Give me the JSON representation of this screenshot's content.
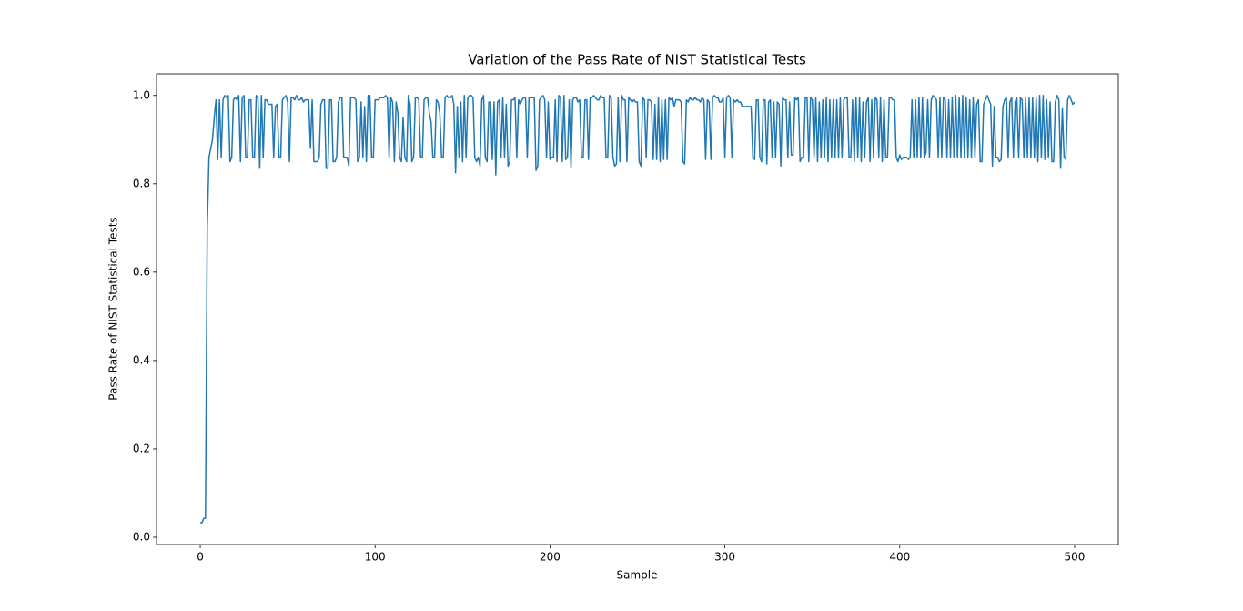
{
  "chart_data": {
    "type": "line",
    "title": "Variation of the Pass Rate of NIST Statistical Tests",
    "xlabel": "Sample",
    "ylabel": "Pass Rate of NIST Statistical Tests",
    "xlim": [
      -25,
      525
    ],
    "ylim": [
      -0.0165,
      1.049
    ],
    "xticks": [
      0,
      100,
      200,
      300,
      400,
      500
    ],
    "yticks": [
      {
        "value": 0,
        "label": "0.0"
      },
      0.2,
      0.4,
      0.6,
      0.8,
      {
        "value": 1,
        "label": "1.0"
      }
    ],
    "x": [
      0,
      1,
      2,
      3,
      4,
      5,
      6,
      7,
      8,
      9,
      10,
      11,
      12,
      13,
      14,
      15,
      16,
      17,
      18,
      19,
      20,
      21,
      22,
      23,
      24,
      25,
      26,
      27,
      28,
      29,
      30,
      31,
      32,
      33,
      34,
      35,
      36,
      37,
      38,
      39,
      40,
      41,
      42,
      43,
      44,
      45,
      46,
      47,
      48,
      49,
      50,
      51,
      52,
      53,
      54,
      55,
      56,
      57,
      58,
      59,
      60,
      61,
      62,
      63,
      64,
      65,
      66,
      67,
      68,
      69,
      70,
      71,
      72,
      73,
      74,
      75,
      76,
      77,
      78,
      79,
      80,
      81,
      82,
      83,
      84,
      85,
      86,
      87,
      88,
      89,
      90,
      91,
      92,
      93,
      94,
      95,
      96,
      97,
      98,
      99,
      100,
      101,
      102,
      103,
      104,
      105,
      106,
      107,
      108,
      109,
      110,
      111,
      112,
      113,
      114,
      115,
      116,
      117,
      118,
      119,
      120,
      121,
      122,
      123,
      124,
      125,
      126,
      127,
      128,
      129,
      130,
      131,
      132,
      133,
      134,
      135,
      136,
      137,
      138,
      139,
      140,
      141,
      142,
      143,
      144,
      145,
      146,
      147,
      148,
      149,
      150,
      151,
      152,
      153,
      154,
      155,
      156,
      157,
      158,
      159,
      160,
      161,
      162,
      163,
      164,
      165,
      166,
      167,
      168,
      169,
      170,
      171,
      172,
      173,
      174,
      175,
      176,
      177,
      178,
      179,
      180,
      181,
      182,
      183,
      184,
      185,
      186,
      187,
      188,
      189,
      190,
      191,
      192,
      193,
      194,
      195,
      196,
      197,
      198,
      199,
      200,
      201,
      202,
      203,
      204,
      205,
      206,
      207,
      208,
      209,
      210,
      211,
      212,
      213,
      214,
      215,
      216,
      217,
      218,
      219,
      220,
      221,
      222,
      223,
      224,
      225,
      226,
      227,
      228,
      229,
      230,
      231,
      232,
      233,
      234,
      235,
      236,
      237,
      238,
      239,
      240,
      241,
      242,
      243,
      244,
      245,
      246,
      247,
      248,
      249,
      250,
      251,
      252,
      253,
      254,
      255,
      256,
      257,
      258,
      259,
      260,
      261,
      262,
      263,
      264,
      265,
      266,
      267,
      268,
      269,
      270,
      271,
      272,
      273,
      274,
      275,
      276,
      277,
      278,
      279,
      280,
      281,
      282,
      283,
      284,
      285,
      286,
      287,
      288,
      289,
      290,
      291,
      292,
      293,
      294,
      295,
      296,
      297,
      298,
      299,
      300,
      301,
      302,
      303,
      304,
      305,
      306,
      307,
      308,
      309,
      310,
      311,
      312,
      313,
      314,
      315,
      316,
      317,
      318,
      319,
      320,
      321,
      322,
      323,
      324,
      325,
      326,
      327,
      328,
      329,
      330,
      331,
      332,
      333,
      334,
      335,
      336,
      337,
      338,
      339,
      340,
      341,
      342,
      343,
      344,
      345,
      346,
      347,
      348,
      349,
      350,
      351,
      352,
      353,
      354,
      355,
      356,
      357,
      358,
      359,
      360,
      361,
      362,
      363,
      364,
      365,
      366,
      367,
      368,
      369,
      370,
      371,
      372,
      373,
      374,
      375,
      376,
      377,
      378,
      379,
      380,
      381,
      382,
      383,
      384,
      385,
      386,
      387,
      388,
      389,
      390,
      391,
      392,
      393,
      394,
      395,
      396,
      397,
      398,
      399,
      400,
      401,
      402,
      403,
      404,
      405,
      406,
      407,
      408,
      409,
      410,
      411,
      412,
      413,
      414,
      415,
      416,
      417,
      418,
      419,
      420,
      421,
      422,
      423,
      424,
      425,
      426,
      427,
      428,
      429,
      430,
      431,
      432,
      433,
      434,
      435,
      436,
      437,
      438,
      439,
      440,
      441,
      442,
      443,
      444,
      445,
      446,
      447,
      448,
      449,
      450,
      451,
      452,
      453,
      454,
      455,
      456,
      457,
      458,
      459,
      460,
      461,
      462,
      463,
      464,
      465,
      466,
      467,
      468,
      469,
      470,
      471,
      472,
      473,
      474,
      475,
      476,
      477,
      478,
      479,
      480,
      481,
      482,
      483,
      484,
      485,
      486,
      487,
      488,
      489,
      490,
      491,
      492,
      493,
      494,
      495,
      496,
      497,
      498,
      499,
      500
    ],
    "series": [
      {
        "color": "#1f77b4",
        "values": [
          0.033,
          0.033,
          0.043,
          0.043,
          0.7,
          0.86,
          0.88,
          0.9,
          0.95,
          0.99,
          0.855,
          0.99,
          0.86,
          0.99,
          1.0,
          0.995,
          1.0,
          0.85,
          0.86,
          0.99,
          0.995,
          0.99,
          1.0,
          0.85,
          0.995,
          1.0,
          0.86,
          0.86,
          0.99,
          0.99,
          0.86,
          0.86,
          1.0,
          0.995,
          0.835,
          1.0,
          0.86,
          0.99,
          0.99,
          0.98,
          0.98,
          0.98,
          0.86,
          0.975,
          0.98,
          0.86,
          0.86,
          0.99,
          0.995,
          1.0,
          0.985,
          0.85,
          0.995,
          0.995,
          0.99,
          1.0,
          0.99,
          0.99,
          0.995,
          0.985,
          0.99,
          0.99,
          0.99,
          0.88,
          0.99,
          0.85,
          0.85,
          0.85,
          0.86,
          0.98,
          0.99,
          0.99,
          0.835,
          0.835,
          0.99,
          0.99,
          0.85,
          0.85,
          0.86,
          0.985,
          0.995,
          0.995,
          0.86,
          0.86,
          0.86,
          0.84,
          0.995,
          0.995,
          0.995,
          0.99,
          0.85,
          0.86,
          0.985,
          0.86,
          0.975,
          0.85,
          1.0,
          1.0,
          0.86,
          0.86,
          0.99,
          0.99,
          0.99,
          0.995,
          0.995,
          0.995,
          1.0,
          0.995,
          0.86,
          0.995,
          0.985,
          0.85,
          0.985,
          0.96,
          0.86,
          0.85,
          0.95,
          0.86,
          0.85,
          1.0,
          0.98,
          0.85,
          0.86,
          0.995,
          0.995,
          0.99,
          0.86,
          0.86,
          0.99,
          0.995,
          0.995,
          0.96,
          0.94,
          0.86,
          0.86,
          0.99,
          0.985,
          0.96,
          0.86,
          0.86,
          0.995,
          1.0,
          0.995,
          0.995,
          1.0,
          0.98,
          0.825,
          0.975,
          0.86,
          0.985,
          0.85,
          1.0,
          0.86,
          0.995,
          1.0,
          1.0,
          0.995,
          0.86,
          0.85,
          0.86,
          0.84,
          0.99,
          1.0,
          0.86,
          0.85,
          0.985,
          0.985,
          0.855,
          0.985,
          0.82,
          0.985,
          0.99,
          0.86,
          0.995,
          0.86,
          0.98,
          0.84,
          0.85,
          0.99,
          0.99,
          0.995,
          0.86,
          0.99,
          0.98,
          0.99,
          0.995,
          0.995,
          0.86,
          0.995,
          0.995,
          0.995,
          0.995,
          0.83,
          0.84,
          0.99,
          0.995,
          1.0,
          0.99,
          0.86,
          0.985,
          0.855,
          0.86,
          0.86,
          0.99,
          0.85,
          1.0,
          0.995,
          0.85,
          1.0,
          0.855,
          0.86,
          0.99,
          0.835,
          0.99,
          0.995,
          0.995,
          0.985,
          0.99,
          0.86,
          0.86,
          0.99,
          0.99,
          0.855,
          0.995,
          0.995,
          1.0,
          0.995,
          0.99,
          0.99,
          1.0,
          0.995,
          0.995,
          0.86,
          0.86,
          1.0,
          0.995,
          0.86,
          0.84,
          0.845,
          0.995,
          0.85,
          1.0,
          0.99,
          0.99,
          0.85,
          0.995,
          0.99,
          0.985,
          0.99,
          0.985,
          0.985,
          0.85,
          0.84,
          0.995,
          0.99,
          0.86,
          0.99,
          0.99,
          0.985,
          0.855,
          0.98,
          0.855,
          0.995,
          0.85,
          0.99,
          0.855,
          0.99,
          0.855,
          0.995,
          0.99,
          0.995,
          0.975,
          0.99,
          0.99,
          0.99,
          0.985,
          0.85,
          0.845,
          0.99,
          0.985,
          0.995,
          0.99,
          0.99,
          0.995,
          0.99,
          0.99,
          0.985,
          0.995,
          0.99,
          0.855,
          0.99,
          0.985,
          0.855,
          0.995,
          1.0,
          0.995,
          0.995,
          0.985,
          0.985,
          0.995,
          0.86,
          0.995,
          1.0,
          0.995,
          0.86,
          0.99,
          0.985,
          0.99,
          0.985,
          0.985,
          0.975,
          0.975,
          0.975,
          0.975,
          0.975,
          0.975,
          0.86,
          0.855,
          0.99,
          0.99,
          0.86,
          0.85,
          0.99,
          0.99,
          0.845,
          0.985,
          0.99,
          0.86,
          0.985,
          0.86,
          0.985,
          0.98,
          0.84,
          0.995,
          0.99,
          0.99,
          0.86,
          0.985,
          0.865,
          0.865,
          0.995,
          0.99,
          0.995,
          0.85,
          0.86,
          0.86,
          0.995,
          0.995,
          0.85,
          0.995,
          0.99,
          0.86,
          0.995,
          0.85,
          0.985,
          0.86,
          0.99,
          0.86,
          0.995,
          0.85,
          0.99,
          0.86,
          0.99,
          0.86,
          0.99,
          0.86,
          0.995,
          0.86,
          0.99,
          0.995,
          0.995,
          0.86,
          0.86,
          0.99,
          0.85,
          0.995,
          0.86,
          0.995,
          0.85,
          0.985,
          0.86,
          0.985,
          0.995,
          0.85,
          0.99,
          0.86,
          0.995,
          0.99,
          0.86,
          0.995,
          0.85,
          0.99,
          0.86,
          0.86,
          0.995,
          0.995,
          0.99,
          0.99,
          0.86,
          0.85,
          0.865,
          0.855,
          0.86,
          0.86,
          0.86,
          0.855,
          0.86,
          0.99,
          0.86,
          0.99,
          0.86,
          0.995,
          0.86,
          0.995,
          0.86,
          0.87,
          0.99,
          0.86,
          0.99,
          1.0,
          0.995,
          0.99,
          0.86,
          0.995,
          0.86,
          0.995,
          0.99,
          0.86,
          0.99,
          0.86,
          0.995,
          0.86,
          1.0,
          0.86,
          0.995,
          0.86,
          1.0,
          0.86,
          0.995,
          0.86,
          0.99,
          0.86,
          0.995,
          0.86,
          0.98,
          0.99,
          0.85,
          0.85,
          0.98,
          0.99,
          1.0,
          0.99,
          0.98,
          0.84,
          0.975,
          0.86,
          0.86,
          0.85,
          0.855,
          0.975,
          0.99,
          0.995,
          0.86,
          0.985,
          0.995,
          0.86,
          0.985,
          0.995,
          0.86,
          0.995,
          0.99,
          0.86,
          0.995,
          0.86,
          0.995,
          0.86,
          0.995,
          0.86,
          0.995,
          0.85,
          1.0,
          0.86,
          1.0,
          0.855,
          0.99,
          0.86,
          0.985,
          0.85,
          0.85,
          0.985,
          1.0,
          0.99,
          0.835,
          0.97,
          0.86,
          0.855,
          0.99,
          1.0,
          0.99,
          0.98,
          0.985
        ]
      }
    ]
  }
}
